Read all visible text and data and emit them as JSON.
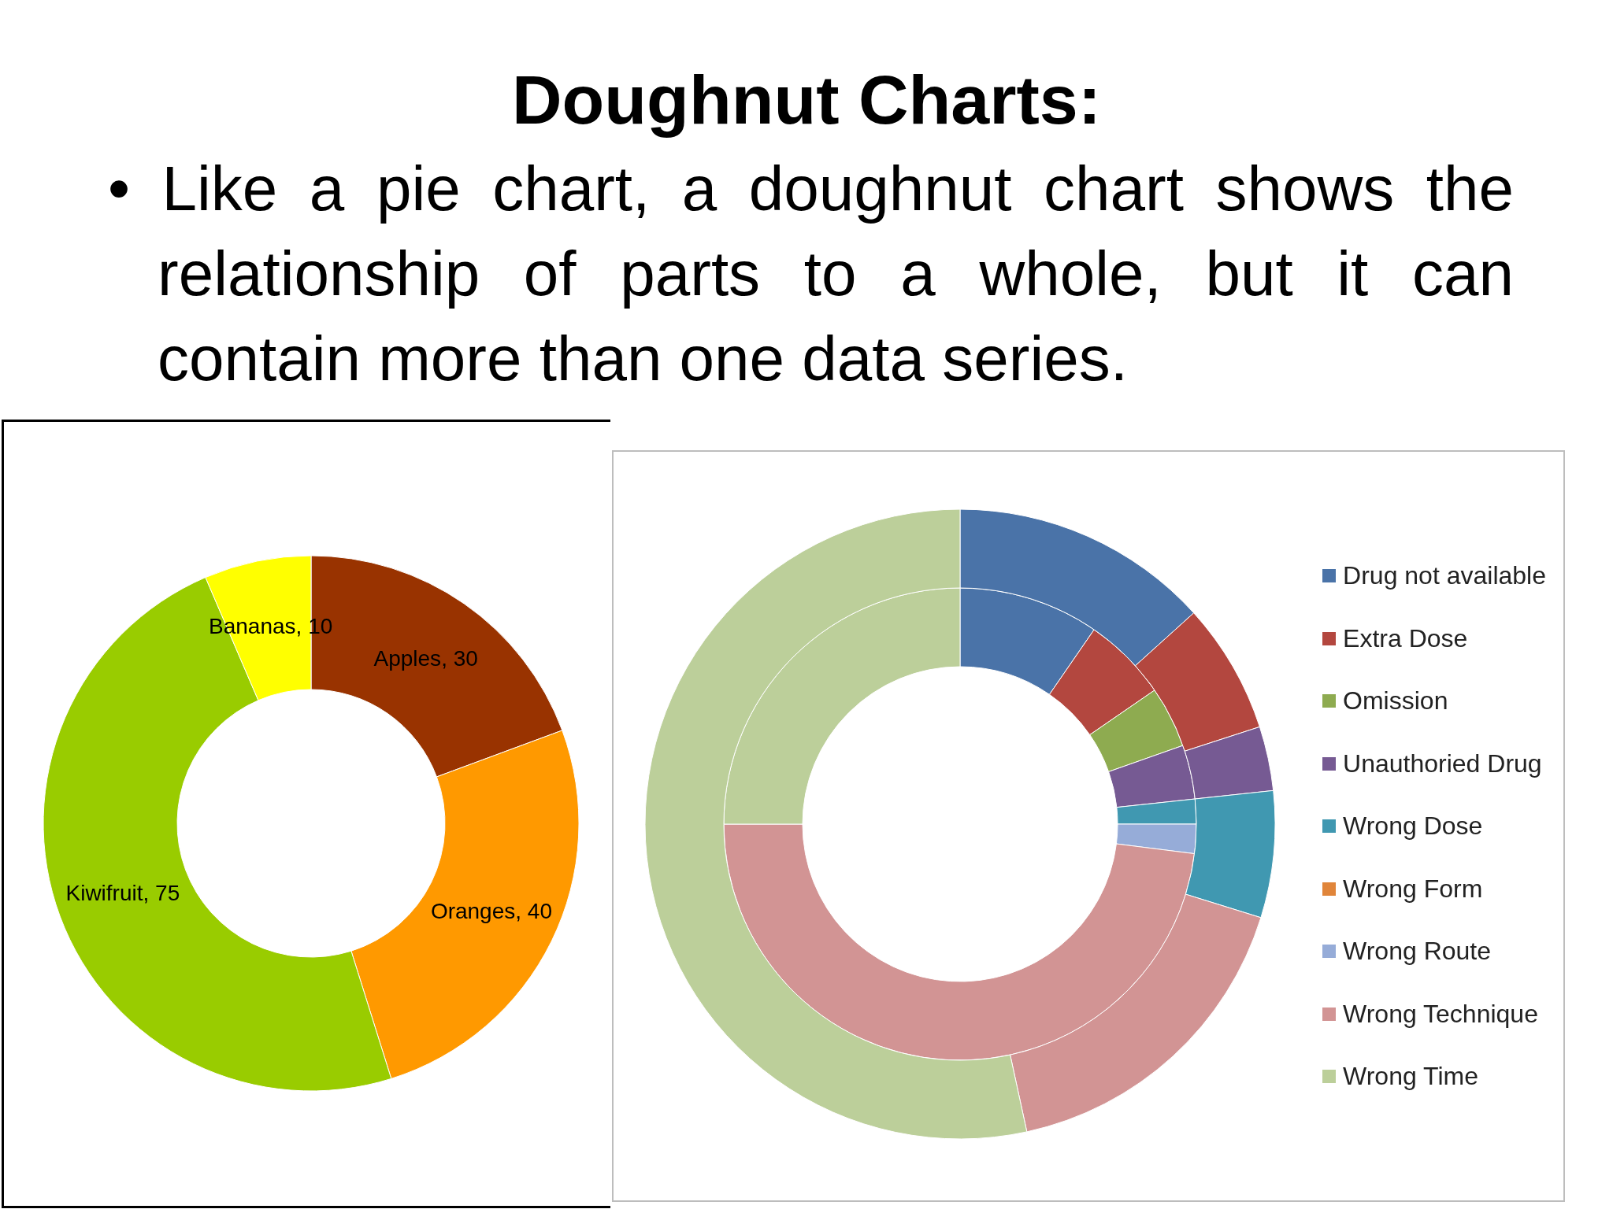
{
  "chart_data": [
    {
      "type": "donut",
      "categories": [
        "Apples",
        "Oranges",
        "Kiwifruit",
        "Bananas"
      ],
      "values": [
        30,
        40,
        75,
        10
      ],
      "colors": [
        "#993300",
        "#ff9900",
        "#99cc00",
        "#ffff00"
      ],
      "value_labels": [
        ", 30",
        ", 40",
        ", 75",
        ", 10"
      ]
    },
    {
      "type": "donut",
      "title": "Doughnut Charts:",
      "subtitle": "• Like a pie chart, a doughnut chart shows the relationship of parts to a whole, but it can contain more than one data series.",
      "categories": [
        "Drug not available",
        "Extra Dose",
        "Omission",
        "Unauthoried Drug",
        "Wrong Dose",
        "Wrong Form",
        "Wrong Route",
        "Wrong Technique",
        "Wrong Time"
      ],
      "colors": [
        "#4a73a8",
        "#b3473f",
        "#8eab50",
        "#765a93",
        "#4098b1",
        "#e0853a",
        "#96acd8",
        "#d29494",
        "#bccf9a"
      ],
      "series": [
        {
          "values": [
            9.6,
            5.8,
            4.2,
            3.7,
            1.7,
            null,
            2.0,
            48,
            25
          ]
        },
        {
          "values": [
            13.3,
            6.7,
            null,
            3.3,
            6.5,
            null,
            null,
            16.8,
            53.4
          ]
        }
      ],
      "legend": "right"
    }
  ]
}
